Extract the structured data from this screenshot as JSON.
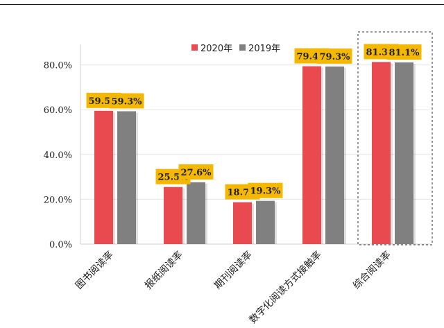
{
  "chart_data": {
    "type": "bar",
    "categories": [
      "图书阅读率",
      "报纸阅读率",
      "期刊阅读率",
      "数字化阅读方式接触率",
      "综合阅读率"
    ],
    "series": [
      {
        "name": "2020年",
        "values": [
          59.5,
          25.5,
          18.7,
          79.4,
          81.3
        ],
        "labels": [
          "59.5%",
          "25.5%",
          "18.7%",
          "79.4%",
          "81.3%"
        ],
        "color": "#e84a4f"
      },
      {
        "name": "2019年",
        "values": [
          59.3,
          27.6,
          19.3,
          79.3,
          81.1
        ],
        "labels": [
          "59.3%",
          "27.6%",
          "19.3%",
          "79.3%",
          "81.1%"
        ],
        "color": "#808080"
      }
    ],
    "yticks": [
      "0.0%",
      "20.0%",
      "40.0%",
      "60.0%",
      "80.0%"
    ],
    "ytick_values": [
      0,
      20,
      40,
      60,
      80
    ],
    "ylim": [
      0,
      90
    ],
    "grid": true,
    "legend_position": "top-right",
    "data_label_background": "#f5b800",
    "highlight_category": "综合阅读率",
    "highlight_style": "dashed box",
    "title": "",
    "xlabel": "",
    "ylabel": ""
  }
}
